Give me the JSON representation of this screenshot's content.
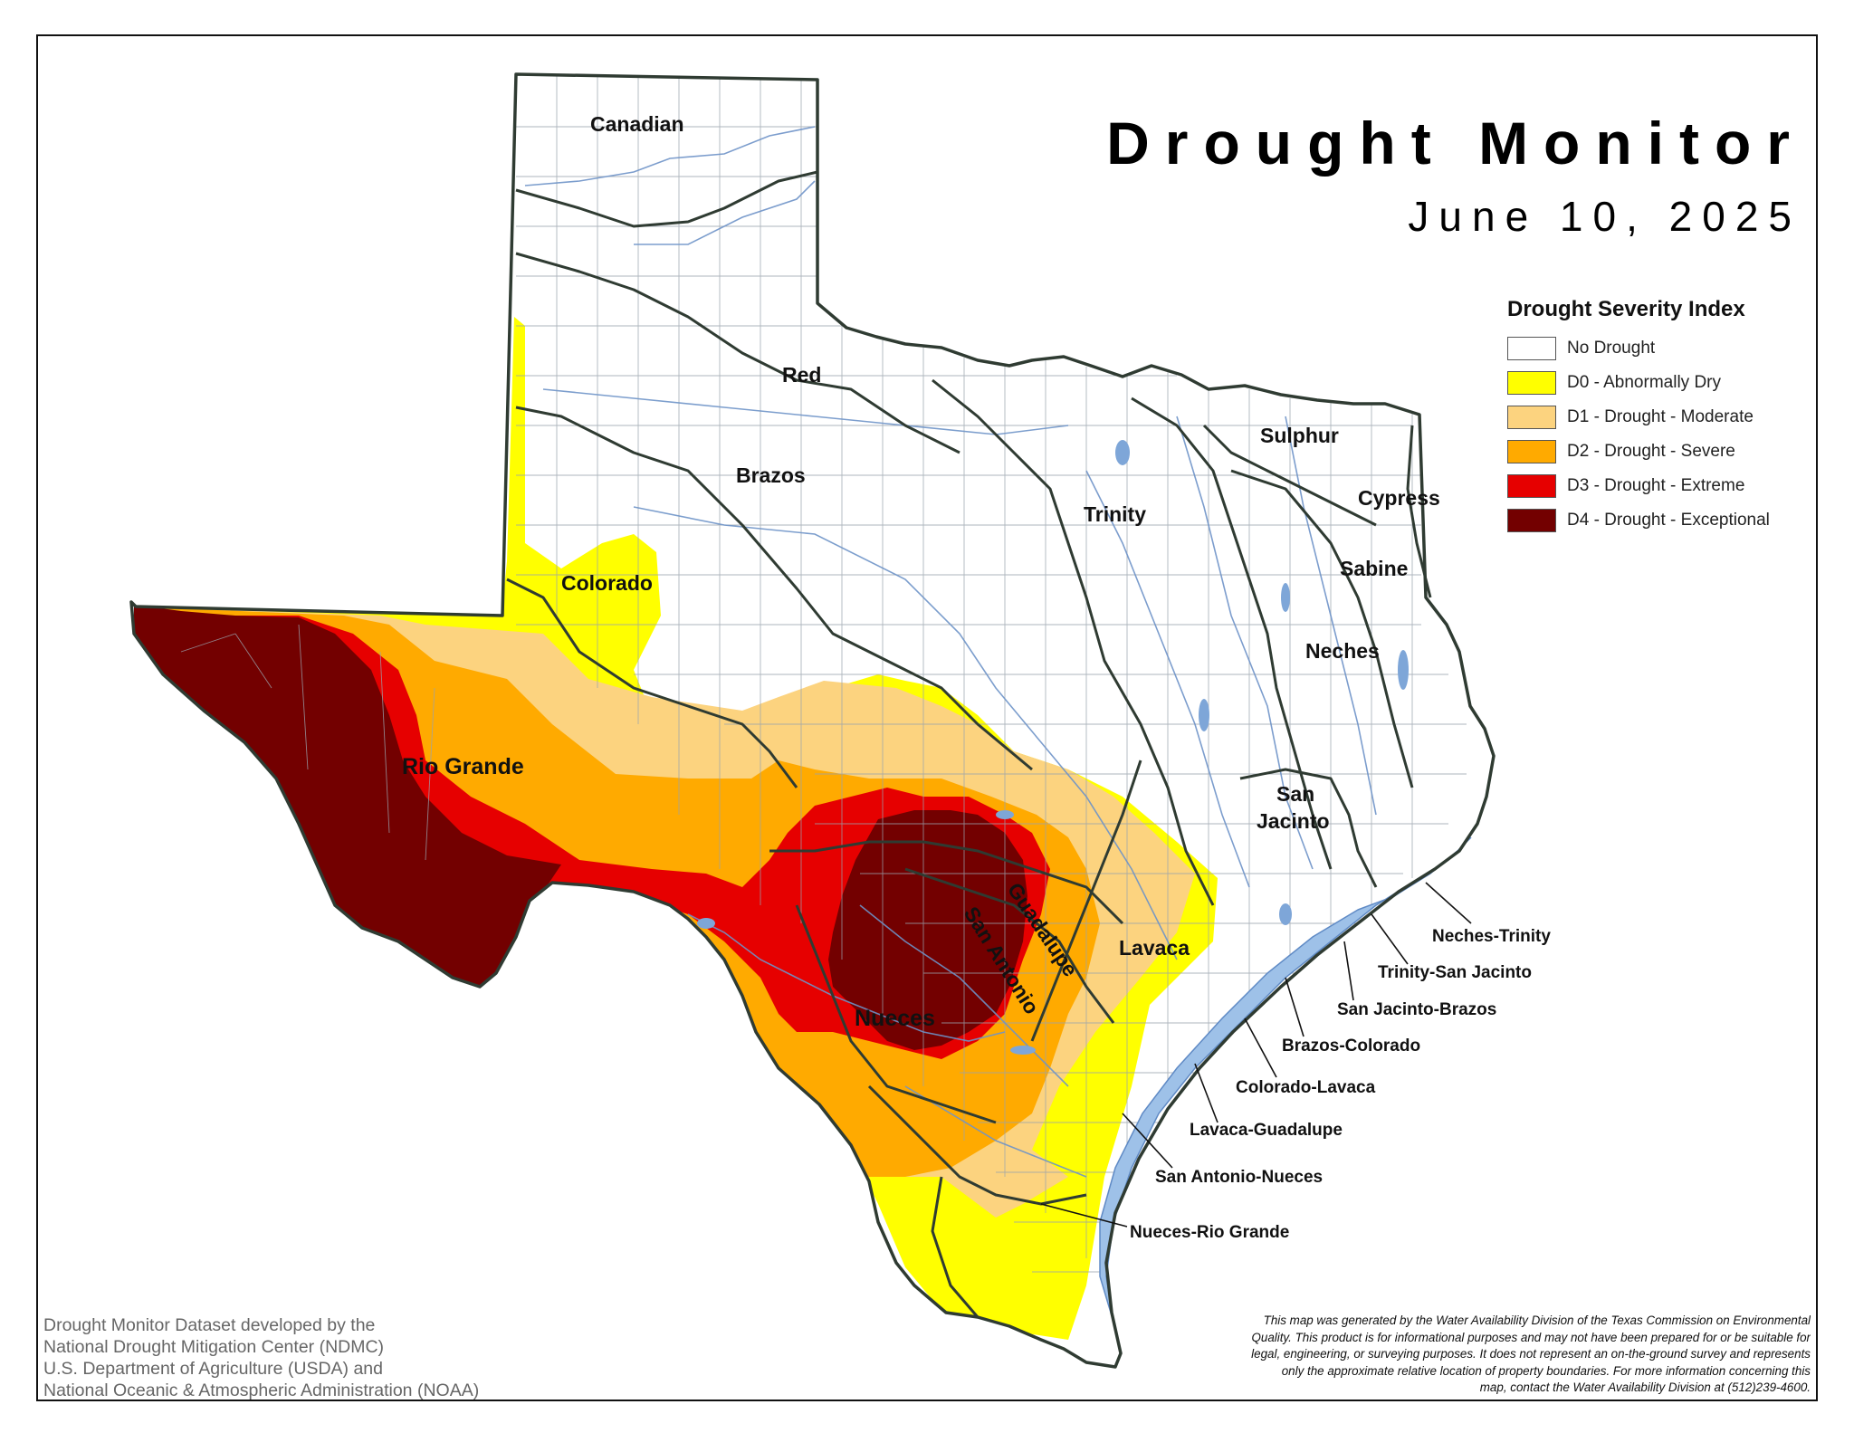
{
  "map": {
    "title": "Drought Monitor",
    "date": "June 10, 2025"
  },
  "legend": {
    "title": "Drought Severity Index",
    "items": [
      {
        "label": "No Drought",
        "color": "#ffffff"
      },
      {
        "label": "D0 - Abnormally Dry",
        "color": "#ffff00"
      },
      {
        "label": "D1 - Drought - Moderate",
        "color": "#fcd37f"
      },
      {
        "label": "D2 - Drought - Severe",
        "color": "#ffaa00"
      },
      {
        "label": "D3 - Drought - Extreme",
        "color": "#e60000"
      },
      {
        "label": "D4 - Drought - Exceptional",
        "color": "#730000"
      }
    ]
  },
  "basins": {
    "canadian": "Canadian",
    "red": "Red",
    "brazos": "Brazos",
    "colorado": "Colorado",
    "rio_grande": "Rio Grande",
    "trinity": "Trinity",
    "sulphur": "Sulphur",
    "cypress": "Cypress",
    "sabine": "Sabine",
    "neches": "Neches",
    "san_jacinto_1": "San",
    "san_jacinto_2": "Jacinto",
    "guadalupe": "Guadalupe",
    "san_antonio": "San Antonio",
    "lavaca": "Lavaca",
    "nueces": "Nueces"
  },
  "coastal_basins": {
    "neches_trinity": "Neches-Trinity",
    "trinity_san_jacinto": "Trinity-San Jacinto",
    "san_jacinto_brazos": "San Jacinto-Brazos",
    "brazos_colorado": "Brazos-Colorado",
    "colorado_lavaca": "Colorado-Lavaca",
    "lavaca_guadalupe": "Lavaca-Guadalupe",
    "san_antonio_nueces": "San Antonio-Nueces",
    "nueces_rio_grande": "Nueces-Rio Grande"
  },
  "credit": [
    "Drought Monitor Dataset developed by the",
    "National Drought Mitigation Center (NDMC)",
    "U.S. Department of Agriculture (USDA) and",
    "National Oceanic & Atmospheric Administration (NOAA)"
  ],
  "disclaimer": [
    "This map was generated by the Water Availability Division of the Texas Commission on Environmental",
    "Quality. This product is for informational purposes and may not have been prepared for or be suitable for",
    "legal, engineering, or surveying purposes. It does not represent an on-the-ground survey and represents",
    "only the approximate relative location of property boundaries. For more information concerning this",
    "map, contact the Water Availability Division at (512)239-4600."
  ]
}
